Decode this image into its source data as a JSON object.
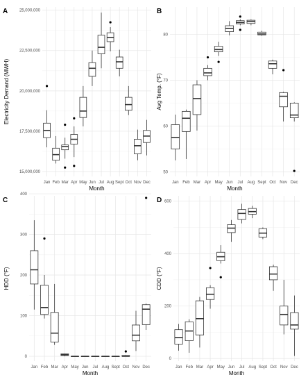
{
  "chart_data": [
    {
      "panel": "A",
      "type": "boxplot",
      "xlabel": "Month",
      "ylabel": "Electricity Demand (MWH)",
      "ylim": [
        14700000,
        25200000
      ],
      "yticks": [
        15000000,
        17500000,
        20000000,
        22500000,
        25000000
      ],
      "ytick_labels": [
        "15,000,000",
        "17,500,000",
        "20,000,000",
        "22,500,000",
        "25,000,000"
      ],
      "categories": [
        "Jan",
        "Feb",
        "Mar",
        "Apr",
        "May",
        "Jun",
        "Jul",
        "Aug",
        "Sept",
        "Oct",
        "Nov",
        "Dec"
      ],
      "boxes": [
        {
          "lower": 16500000,
          "q1": 17100000,
          "median": 17550000,
          "q3": 18000000,
          "upper": 18800000,
          "outliers": [
            20300000
          ]
        },
        {
          "lower": 15500000,
          "q1": 15700000,
          "median": 16050000,
          "q3": 16450000,
          "upper": 17200000,
          "outliers": []
        },
        {
          "lower": 15800000,
          "q1": 16350000,
          "median": 16550000,
          "q3": 16650000,
          "upper": 17100000,
          "outliers": [
            17900000,
            15250000
          ]
        },
        {
          "lower": 15900000,
          "q1": 16700000,
          "median": 17000000,
          "q3": 17300000,
          "upper": 17800000,
          "outliers": [
            18300000,
            15350000
          ]
        },
        {
          "lower": 17800000,
          "q1": 18350000,
          "median": 18750000,
          "q3": 19600000,
          "upper": 20300000,
          "outliers": []
        },
        {
          "lower": 20300000,
          "q1": 20900000,
          "median": 21400000,
          "q3": 21750000,
          "upper": 22500000,
          "outliers": []
        },
        {
          "lower": 21400000,
          "q1": 22300000,
          "median": 22700000,
          "q3": 23450000,
          "upper": 24850000,
          "outliers": []
        },
        {
          "lower": 22450000,
          "q1": 23050000,
          "median": 23300000,
          "q3": 23600000,
          "upper": 23950000,
          "outliers": [
            24250000
          ]
        },
        {
          "lower": 20900000,
          "q1": 21400000,
          "median": 21800000,
          "q3": 22100000,
          "upper": 22550000,
          "outliers": []
        },
        {
          "lower": 18500000,
          "q1": 18800000,
          "median": 19150000,
          "q3": 19600000,
          "upper": 20300000,
          "outliers": []
        },
        {
          "lower": 15700000,
          "q1": 16100000,
          "median": 16600000,
          "q3": 17000000,
          "upper": 17600000,
          "outliers": []
        },
        {
          "lower": 16000000,
          "q1": 16800000,
          "median": 17200000,
          "q3": 17550000,
          "upper": 18200000,
          "outliers": []
        }
      ]
    },
    {
      "panel": "B",
      "type": "boxplot",
      "xlabel": "Month",
      "ylabel": "Avg Temp. (°F)",
      "ylim": [
        49,
        86
      ],
      "yticks": [
        50,
        60,
        70,
        80
      ],
      "ytick_labels": [
        "50",
        "60",
        "70",
        "80"
      ],
      "categories": [
        "Jan",
        "Feb",
        "Mar",
        "Apr",
        "May",
        "Jun",
        "Jul",
        "Aug",
        "Sept",
        "Oct",
        "Nov",
        "Dec"
      ],
      "boxes": [
        {
          "lower": 52.5,
          "q1": 55.0,
          "median": 57.5,
          "q3": 60.3,
          "upper": 62.5,
          "outliers": []
        },
        {
          "lower": 52.8,
          "q1": 58.8,
          "median": 61.7,
          "q3": 63.2,
          "upper": 63.6,
          "outliers": []
        },
        {
          "lower": 59.0,
          "q1": 62.5,
          "median": 66.0,
          "q3": 69.0,
          "upper": 70.0,
          "outliers": []
        },
        {
          "lower": 70.0,
          "q1": 71.0,
          "median": 71.6,
          "q3": 72.6,
          "upper": 73.3,
          "outliers": [
            75.0
          ]
        },
        {
          "lower": 75.3,
          "q1": 76.2,
          "median": 76.7,
          "q3": 77.4,
          "upper": 78.4,
          "outliers": [
            74.0
          ]
        },
        {
          "lower": 79.8,
          "q1": 80.6,
          "median": 81.3,
          "q3": 81.9,
          "upper": 82.9,
          "outliers": []
        },
        {
          "lower": 82.0,
          "q1": 82.3,
          "median": 82.6,
          "q3": 83.0,
          "upper": 83.3,
          "outliers": [
            83.9,
            81.0
          ]
        },
        {
          "lower": 82.0,
          "q1": 82.4,
          "median": 82.8,
          "q3": 83.1,
          "upper": 83.3,
          "outliers": []
        },
        {
          "lower": 79.7,
          "q1": 79.9,
          "median": 80.1,
          "q3": 80.5,
          "upper": 80.8,
          "outliers": []
        },
        {
          "lower": 71.3,
          "q1": 72.6,
          "median": 73.6,
          "q3": 74.2,
          "upper": 74.5,
          "outliers": []
        },
        {
          "lower": 61.0,
          "q1": 64.2,
          "median": 66.5,
          "q3": 67.3,
          "upper": 67.5,
          "outliers": [
            72.2
          ]
        },
        {
          "lower": 61.0,
          "q1": 61.8,
          "median": 62.4,
          "q3": 65.0,
          "upper": 65.2,
          "outliers": [
            50.2
          ]
        }
      ]
    },
    {
      "panel": "C",
      "type": "boxplot",
      "xlabel": "Month",
      "ylabel": "HDD (°F)",
      "ylim": [
        -12,
        395
      ],
      "yticks": [
        0,
        100,
        200,
        300,
        400
      ],
      "ytick_labels": [
        "0",
        "100",
        "200",
        "300",
        "400"
      ],
      "categories": [
        "Jan",
        "Feb",
        "Mar",
        "Apr",
        "May",
        "Jun",
        "Jul",
        "Aug",
        "Sept",
        "Oct",
        "Nov",
        "Dec"
      ],
      "boxes": [
        {
          "lower": 115,
          "q1": 178,
          "median": 213,
          "q3": 260,
          "upper": 335,
          "outliers": []
        },
        {
          "lower": 93,
          "q1": 103,
          "median": 120,
          "q3": 175,
          "upper": 200,
          "outliers": [
            290
          ]
        },
        {
          "lower": 28,
          "q1": 35,
          "median": 57,
          "q3": 108,
          "upper": 178,
          "outliers": []
        },
        {
          "lower": 0,
          "q1": 2,
          "median": 4,
          "q3": 6,
          "upper": 7,
          "outliers": []
        },
        {
          "lower": 0,
          "q1": 0,
          "median": 0,
          "q3": 0,
          "upper": 0,
          "outliers": []
        },
        {
          "lower": 0,
          "q1": 0,
          "median": 0,
          "q3": 0,
          "upper": 0,
          "outliers": []
        },
        {
          "lower": 0,
          "q1": 0,
          "median": 0,
          "q3": 0,
          "upper": 0,
          "outliers": []
        },
        {
          "lower": 0,
          "q1": 0,
          "median": 0,
          "q3": 0,
          "upper": 0,
          "outliers": []
        },
        {
          "lower": 0,
          "q1": 0,
          "median": 0,
          "q3": 0,
          "upper": 0,
          "outliers": []
        },
        {
          "lower": 0,
          "q1": 0,
          "median": 0,
          "q3": 2,
          "upper": 3,
          "outliers": [
            12
          ]
        },
        {
          "lower": 13,
          "q1": 38,
          "median": 52,
          "q3": 77,
          "upper": 112,
          "outliers": []
        },
        {
          "lower": 65,
          "q1": 78,
          "median": 116,
          "q3": 127,
          "upper": 130,
          "outliers": [
            390
          ]
        }
      ]
    },
    {
      "panel": "D",
      "type": "boxplot",
      "xlabel": "Month",
      "ylabel": "CDD (°F)",
      "ylim": [
        -10,
        620
      ],
      "yticks": [
        0,
        200,
        400,
        600
      ],
      "ytick_labels": [
        "0",
        "200",
        "400",
        "600"
      ],
      "categories": [
        "Jan",
        "Feb",
        "Mar",
        "Apr",
        "May",
        "Jun",
        "Jul",
        "Aug",
        "Sept",
        "Oct",
        "Nov",
        "Dec"
      ],
      "boxes": [
        {
          "lower": 30,
          "q1": 55,
          "median": 80,
          "q3": 110,
          "upper": 132,
          "outliers": []
        },
        {
          "lower": 22,
          "q1": 68,
          "median": 105,
          "q3": 140,
          "upper": 150,
          "outliers": []
        },
        {
          "lower": 42,
          "q1": 90,
          "median": 152,
          "q3": 220,
          "upper": 235,
          "outliers": []
        },
        {
          "lower": 190,
          "q1": 225,
          "median": 245,
          "q3": 270,
          "upper": 280,
          "outliers": [
            345
          ]
        },
        {
          "lower": 362,
          "q1": 373,
          "median": 388,
          "q3": 405,
          "upper": 432,
          "outliers": [
            310
          ]
        },
        {
          "lower": 445,
          "q1": 480,
          "median": 497,
          "q3": 510,
          "upper": 528,
          "outliers": []
        },
        {
          "lower": 515,
          "q1": 530,
          "median": 553,
          "q3": 568,
          "upper": 590,
          "outliers": []
        },
        {
          "lower": 535,
          "q1": 550,
          "median": 560,
          "q3": 572,
          "upper": 582,
          "outliers": []
        },
        {
          "lower": 455,
          "q1": 463,
          "median": 478,
          "q3": 495,
          "upper": 500,
          "outliers": []
        },
        {
          "lower": 258,
          "q1": 300,
          "median": 322,
          "q3": 350,
          "upper": 358,
          "outliers": []
        },
        {
          "lower": 92,
          "q1": 128,
          "median": 168,
          "q3": 200,
          "upper": 300,
          "outliers": []
        },
        {
          "lower": 10,
          "q1": 112,
          "median": 128,
          "q3": 175,
          "upper": 240,
          "outliers": []
        }
      ]
    }
  ]
}
